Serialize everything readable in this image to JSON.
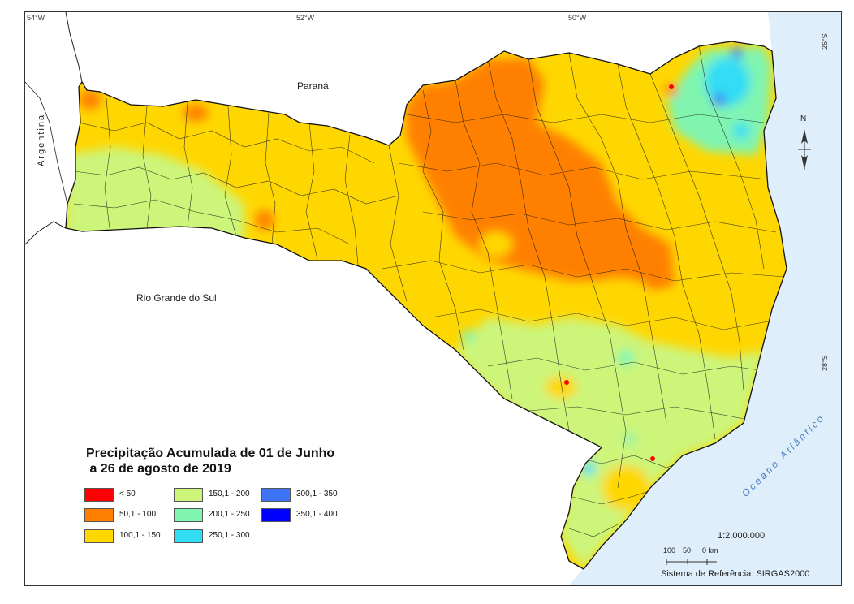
{
  "map": {
    "title_line1": "Precipitação Acumulada de 01 de Junho",
    "title_line2": " a 26 de agosto de 2019",
    "top_ticks": [
      "54°W",
      "52°W",
      "50°W"
    ],
    "right_ticks": [
      "26°S",
      "28°S"
    ],
    "labels": {
      "parana": "Paraná",
      "argentina": "Argentina",
      "rio_grande_do_sul": "Rio Grande do Sul",
      "ocean": "Oceano Atlântico",
      "north": "N"
    },
    "scale_ratio": "1:2.000.000",
    "scale_ticks": [
      "100",
      "50",
      "0 km"
    ],
    "reference_system": "Sistema de Referência: SIRGAS2000",
    "legend": [
      {
        "label": "< 50",
        "color": "#ff0000"
      },
      {
        "label": "50,1 - 100",
        "color": "#ff8000"
      },
      {
        "label": "100,1 - 150",
        "color": "#ffd700"
      },
      {
        "label": "150,1 - 200",
        "color": "#ccf57a"
      },
      {
        "label": "200,1 - 250",
        "color": "#80f5b0"
      },
      {
        "label": "250,1 - 300",
        "color": "#33ddf5"
      },
      {
        "label": "300,1 - 350",
        "color": "#3d73f5"
      },
      {
        "label": "350,1 - 400",
        "color": "#0000ff"
      }
    ],
    "colors": {
      "ocean": "#deeefa",
      "border": "#1a1a1a"
    }
  }
}
